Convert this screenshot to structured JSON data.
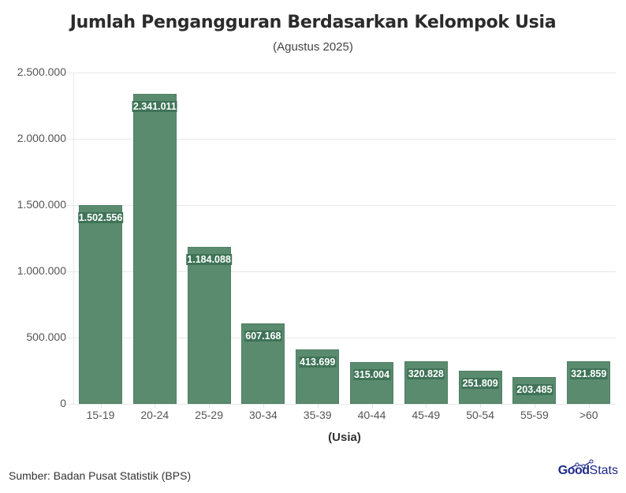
{
  "header": {
    "title": "Jumlah Pengangguran Berdasarkan Kelompok Usia",
    "subtitle": "(Agustus 2025)"
  },
  "axes": {
    "y_ticks": [
      "0",
      "500.000",
      "1.000.000",
      "1.500.000",
      "2.000.000",
      "2.500.000"
    ],
    "x_label": "(Usia)"
  },
  "bars": [
    {
      "category": "15-19",
      "label": "1.502.556",
      "value": 1502556
    },
    {
      "category": "20-24",
      "label": "2.341.011",
      "value": 2341011
    },
    {
      "category": "25-29",
      "label": "1.184.088",
      "value": 1184088
    },
    {
      "category": "30-34",
      "label": "607.168",
      "value": 607168
    },
    {
      "category": "35-39",
      "label": "413.699",
      "value": 413699
    },
    {
      "category": "40-44",
      "label": "315.004",
      "value": 315004
    },
    {
      "category": "45-49",
      "label": "320.828",
      "value": 320828
    },
    {
      "category": "50-54",
      "label": "251.809",
      "value": 251809
    },
    {
      "category": "55-59",
      "label": "203.485",
      "value": 203485
    },
    {
      "category": ">60",
      "label": "321.859",
      "value": 321859
    }
  ],
  "footer": {
    "source": "Sumber: Badan Pusat Statistik (BPS)",
    "logo_bold": "Good",
    "logo_light": "Stats"
  },
  "colors": {
    "bar": "#5a8b6f",
    "label_bg": "#3f7357",
    "logo": "#1f2a8a"
  },
  "chart_data": {
    "type": "bar",
    "title": "Jumlah Pengangguran Berdasarkan Kelompok Usia",
    "subtitle": "(Agustus 2025)",
    "categories": [
      "15-19",
      "20-24",
      "25-29",
      "30-34",
      "35-39",
      "40-44",
      "45-49",
      "50-54",
      "55-59",
      ">60"
    ],
    "values": [
      1502556,
      2341011,
      1184088,
      607168,
      413699,
      315004,
      320828,
      251809,
      203485,
      321859
    ],
    "xlabel": "(Usia)",
    "ylabel": "",
    "ylim": [
      0,
      2500000
    ],
    "y_ticks": [
      0,
      500000,
      1000000,
      1500000,
      2000000,
      2500000
    ],
    "grid": true,
    "legend": null,
    "data_labels": true,
    "source": "Sumber: Badan Pusat Statistik (BPS)"
  }
}
